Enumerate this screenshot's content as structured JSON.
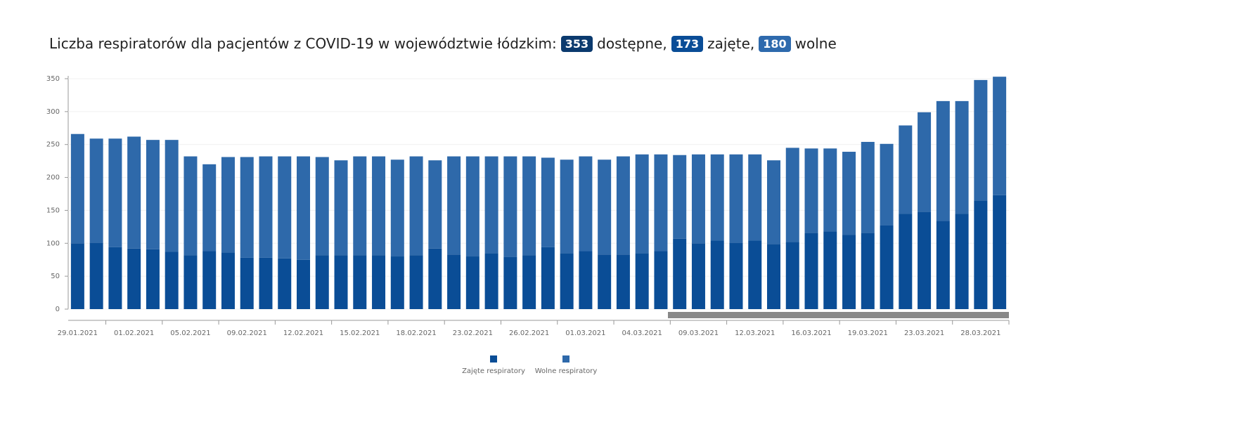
{
  "chart_data": {
    "type": "stacked_bar",
    "title": "Liczba respiratorów dla pacjentów z COVID-19 w województwie łódzkim:",
    "badges": [
      {
        "value": "353",
        "label": "dostępne,",
        "color": "#0b3a6e"
      },
      {
        "value": "173",
        "label": "zajęte,",
        "color": "#0a4d97"
      },
      {
        "value": "180",
        "label": "wolne",
        "color": "#2e6aad"
      }
    ],
    "categories": [
      "29.01.2021",
      null,
      null,
      "01.02.2021",
      null,
      null,
      "05.02.2021",
      null,
      null,
      "09.02.2021",
      null,
      null,
      "12.02.2021",
      null,
      null,
      "15.02.2021",
      null,
      null,
      "18.02.2021",
      null,
      null,
      "23.02.2021",
      null,
      null,
      "26.02.2021",
      null,
      null,
      "01.03.2021",
      null,
      null,
      "04.03.2021",
      null,
      null,
      "09.03.2021",
      null,
      null,
      "12.03.2021",
      null,
      null,
      "16.03.2021",
      null,
      null,
      "19.03.2021",
      null,
      null,
      "23.03.2021",
      null,
      null,
      "28.03.2021",
      null
    ],
    "series": [
      {
        "name": "Zajęte respiratory",
        "color": "#0a4d96",
        "values": [
          100,
          101,
          94,
          92,
          91,
          87,
          82,
          88,
          86,
          78,
          78,
          77,
          75,
          82,
          82,
          82,
          82,
          80,
          82,
          92,
          83,
          80,
          85,
          79,
          82,
          94,
          85,
          88,
          83,
          83,
          85,
          88,
          107,
          100,
          104,
          101,
          104,
          99,
          102,
          116,
          118,
          113,
          116,
          127,
          145,
          148,
          134,
          145,
          165,
          173
        ]
      },
      {
        "name": "Wolne respiratory",
        "color": "#2e69aa",
        "values": [
          166,
          158,
          165,
          170,
          166,
          170,
          150,
          132,
          145,
          153,
          154,
          155,
          157,
          149,
          144,
          150,
          150,
          147,
          150,
          134,
          149,
          152,
          147,
          153,
          150,
          136,
          142,
          144,
          144,
          149,
          150,
          147,
          127,
          135,
          131,
          134,
          131,
          127,
          143,
          128,
          126,
          126,
          138,
          124,
          134,
          151,
          182,
          171,
          183,
          180
        ]
      }
    ],
    "ylim": [
      0,
      350
    ],
    "yticks": [
      0,
      50,
      100,
      150,
      200,
      250,
      300,
      350
    ],
    "grid": true,
    "legend": "bottom"
  }
}
